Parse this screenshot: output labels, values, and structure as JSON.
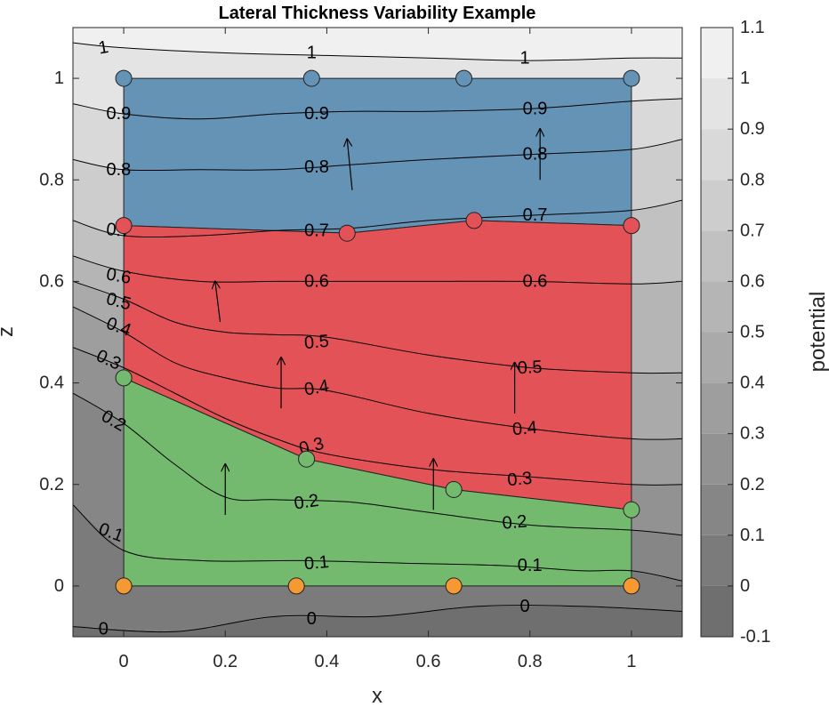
{
  "chart_data": {
    "type": "contour",
    "title": "Lateral Thickness Variability Example",
    "xlabel": "x",
    "ylabel": "z",
    "xlim": [
      -0.1,
      1.1
    ],
    "ylim": [
      -0.1,
      1.1
    ],
    "xticks": [
      "0",
      "0.2",
      "0.4",
      "0.6",
      "0.8",
      "1"
    ],
    "yticks": [
      "0",
      "0.2",
      "0.4",
      "0.6",
      "0.8",
      "1"
    ],
    "colorbar": {
      "label": "potential",
      "range": [
        -0.1,
        1.1
      ],
      "ticks": [
        "-0.1",
        "0",
        "0.1",
        "0.2",
        "0.3",
        "0.4",
        "0.5",
        "0.6",
        "0.7",
        "0.8",
        "0.9",
        "1",
        "1.1"
      ]
    },
    "contour_levels": [
      0,
      0.1,
      0.2,
      0.3,
      0.4,
      0.5,
      0.6,
      0.7,
      0.8,
      0.9,
      1
    ],
    "contours": [
      {
        "level": 0,
        "points": [
          [
            -0.1,
            -0.08
          ],
          [
            0.1,
            -0.09
          ],
          [
            0.3,
            -0.06
          ],
          [
            0.5,
            -0.06
          ],
          [
            0.7,
            -0.04
          ],
          [
            0.9,
            -0.04
          ],
          [
            1.1,
            -0.05
          ]
        ],
        "labels": [
          {
            "text": "0",
            "x": -0.04,
            "y": -0.085,
            "angle": 0
          },
          {
            "text": "0",
            "x": 0.37,
            "y": -0.065,
            "angle": 0
          },
          {
            "text": "0",
            "x": 0.79,
            "y": -0.04,
            "angle": 0
          }
        ]
      },
      {
        "level": 0.1,
        "points": [
          [
            -0.1,
            0.16
          ],
          [
            0.0,
            0.07
          ],
          [
            0.15,
            0.05
          ],
          [
            0.35,
            0.05
          ],
          [
            0.55,
            0.045
          ],
          [
            0.75,
            0.04
          ],
          [
            0.9,
            0.03
          ],
          [
            1.0,
            0.03
          ],
          [
            1.1,
            0.01
          ]
        ],
        "labels": [
          {
            "text": "0.1",
            "x": -0.025,
            "y": 0.105,
            "angle": 20
          },
          {
            "text": "0.1",
            "x": 0.38,
            "y": 0.045,
            "angle": -5
          },
          {
            "text": "0.1",
            "x": 0.8,
            "y": 0.04,
            "angle": 0
          }
        ]
      },
      {
        "level": 0.2,
        "points": [
          [
            -0.1,
            0.38
          ],
          [
            0.0,
            0.32
          ],
          [
            0.1,
            0.24
          ],
          [
            0.2,
            0.175
          ],
          [
            0.3,
            0.17
          ],
          [
            0.45,
            0.165
          ],
          [
            0.6,
            0.145
          ],
          [
            0.8,
            0.12
          ],
          [
            1.0,
            0.11
          ],
          [
            1.1,
            0.1
          ]
        ],
        "labels": [
          {
            "text": "0.2",
            "x": -0.02,
            "y": 0.325,
            "angle": 30
          },
          {
            "text": "0.2",
            "x": 0.36,
            "y": 0.165,
            "angle": -8
          },
          {
            "text": "0.2",
            "x": 0.77,
            "y": 0.125,
            "angle": -5
          }
        ]
      },
      {
        "level": 0.3,
        "points": [
          [
            -0.1,
            0.47
          ],
          [
            0.0,
            0.43
          ],
          [
            0.1,
            0.38
          ],
          [
            0.2,
            0.33
          ],
          [
            0.3,
            0.29
          ],
          [
            0.4,
            0.26
          ],
          [
            0.6,
            0.23
          ],
          [
            0.8,
            0.215
          ],
          [
            1.0,
            0.2
          ],
          [
            1.1,
            0.2
          ]
        ],
        "labels": [
          {
            "text": "0.3",
            "x": -0.03,
            "y": 0.445,
            "angle": 25
          },
          {
            "text": "0.3",
            "x": 0.37,
            "y": 0.275,
            "angle": -15
          },
          {
            "text": "0.3",
            "x": 0.78,
            "y": 0.21,
            "angle": -5
          }
        ]
      },
      {
        "level": 0.4,
        "points": [
          [
            -0.1,
            0.55
          ],
          [
            0.0,
            0.5
          ],
          [
            0.1,
            0.44
          ],
          [
            0.2,
            0.41
          ],
          [
            0.3,
            0.39
          ],
          [
            0.4,
            0.385
          ],
          [
            0.6,
            0.34
          ],
          [
            0.8,
            0.31
          ],
          [
            1.0,
            0.29
          ],
          [
            1.1,
            0.29
          ]
        ],
        "labels": [
          {
            "text": "0.4",
            "x": -0.01,
            "y": 0.51,
            "angle": 20
          },
          {
            "text": "0.4",
            "x": 0.38,
            "y": 0.39,
            "angle": -10
          },
          {
            "text": "0.4",
            "x": 0.79,
            "y": 0.31,
            "angle": -5
          }
        ]
      },
      {
        "level": 0.5,
        "points": [
          [
            -0.1,
            0.6
          ],
          [
            0.0,
            0.565
          ],
          [
            0.1,
            0.52
          ],
          [
            0.2,
            0.5
          ],
          [
            0.3,
            0.495
          ],
          [
            0.4,
            0.49
          ],
          [
            0.6,
            0.455
          ],
          [
            0.8,
            0.43
          ],
          [
            1.0,
            0.42
          ],
          [
            1.1,
            0.42
          ]
        ],
        "labels": [
          {
            "text": "0.5",
            "x": -0.01,
            "y": 0.56,
            "angle": 15
          },
          {
            "text": "0.5",
            "x": 0.38,
            "y": 0.48,
            "angle": -5
          },
          {
            "text": "0.5",
            "x": 0.8,
            "y": 0.43,
            "angle": -3
          }
        ]
      },
      {
        "level": 0.6,
        "points": [
          [
            -0.1,
            0.65
          ],
          [
            0.0,
            0.62
          ],
          [
            0.15,
            0.6
          ],
          [
            0.3,
            0.6
          ],
          [
            0.45,
            0.6
          ],
          [
            0.6,
            0.6
          ],
          [
            0.8,
            0.6
          ],
          [
            1.0,
            0.595
          ],
          [
            1.1,
            0.6
          ]
        ],
        "labels": [
          {
            "text": "0.6",
            "x": -0.01,
            "y": 0.61,
            "angle": 10
          },
          {
            "text": "0.6",
            "x": 0.38,
            "y": 0.6,
            "angle": 0
          },
          {
            "text": "0.6",
            "x": 0.81,
            "y": 0.6,
            "angle": 0
          }
        ]
      },
      {
        "level": 0.7,
        "points": [
          [
            -0.1,
            0.72
          ],
          [
            0.0,
            0.69
          ],
          [
            0.15,
            0.69
          ],
          [
            0.3,
            0.7
          ],
          [
            0.45,
            0.705
          ],
          [
            0.6,
            0.72
          ],
          [
            0.8,
            0.73
          ],
          [
            1.0,
            0.74
          ],
          [
            1.1,
            0.76
          ]
        ],
        "labels": [
          {
            "text": "0.7",
            "x": -0.01,
            "y": 0.7,
            "angle": 5
          },
          {
            "text": "0.7",
            "x": 0.38,
            "y": 0.7,
            "angle": 0
          },
          {
            "text": "0.7",
            "x": 0.81,
            "y": 0.73,
            "angle": 0
          }
        ]
      },
      {
        "level": 0.8,
        "points": [
          [
            -0.1,
            0.84
          ],
          [
            0.0,
            0.82
          ],
          [
            0.15,
            0.82
          ],
          [
            0.3,
            0.82
          ],
          [
            0.45,
            0.83
          ],
          [
            0.6,
            0.84
          ],
          [
            0.8,
            0.85
          ],
          [
            1.0,
            0.86
          ],
          [
            1.1,
            0.88
          ]
        ],
        "labels": [
          {
            "text": "0.8",
            "x": -0.01,
            "y": 0.82,
            "angle": 0
          },
          {
            "text": "0.8",
            "x": 0.38,
            "y": 0.825,
            "angle": 0
          },
          {
            "text": "0.8",
            "x": 0.81,
            "y": 0.85,
            "angle": 0
          }
        ]
      },
      {
        "level": 0.9,
        "points": [
          [
            -0.1,
            0.95
          ],
          [
            0.0,
            0.93
          ],
          [
            0.15,
            0.92
          ],
          [
            0.3,
            0.93
          ],
          [
            0.45,
            0.935
          ],
          [
            0.6,
            0.935
          ],
          [
            0.8,
            0.94
          ],
          [
            1.0,
            0.955
          ],
          [
            1.1,
            0.96
          ]
        ],
        "labels": [
          {
            "text": "0.9",
            "x": -0.01,
            "y": 0.93,
            "angle": 0
          },
          {
            "text": "0.9",
            "x": 0.38,
            "y": 0.93,
            "angle": 0
          },
          {
            "text": "0.9",
            "x": 0.81,
            "y": 0.94,
            "angle": 0
          }
        ]
      },
      {
        "level": 1,
        "points": [
          [
            -0.1,
            1.07
          ],
          [
            0.0,
            1.06
          ],
          [
            0.2,
            1.05
          ],
          [
            0.4,
            1.045
          ],
          [
            0.6,
            1.04
          ],
          [
            0.8,
            1.035
          ],
          [
            1.0,
            1.04
          ],
          [
            1.1,
            1.04
          ]
        ],
        "labels": [
          {
            "text": "1",
            "x": -0.04,
            "y": 1.06,
            "angle": -10
          },
          {
            "text": "1",
            "x": 0.37,
            "y": 1.05,
            "angle": 0
          },
          {
            "text": "1",
            "x": 0.79,
            "y": 1.04,
            "angle": 0
          }
        ]
      }
    ],
    "layers": [
      {
        "color": "#6593b6",
        "polygon": [
          [
            0,
            1
          ],
          [
            1,
            1
          ],
          [
            1,
            0.71
          ],
          [
            0.69,
            0.72
          ],
          [
            0.44,
            0.695
          ],
          [
            0,
            0.71
          ]
        ]
      },
      {
        "color": "#e35257",
        "polygon": [
          [
            0,
            0.71
          ],
          [
            0.44,
            0.695
          ],
          [
            0.69,
            0.72
          ],
          [
            1,
            0.71
          ],
          [
            1,
            0.15
          ],
          [
            0.65,
            0.19
          ],
          [
            0.36,
            0.25
          ],
          [
            0,
            0.41
          ]
        ]
      },
      {
        "color": "#73b96e",
        "polygon": [
          [
            0,
            0.41
          ],
          [
            0.36,
            0.25
          ],
          [
            0.65,
            0.19
          ],
          [
            1,
            0.15
          ],
          [
            1,
            0
          ],
          [
            0,
            0
          ]
        ]
      }
    ],
    "points": [
      {
        "color": "#6593b6",
        "coords": [
          [
            0,
            1
          ],
          [
            0.37,
            1
          ],
          [
            0.67,
            1
          ],
          [
            1,
            1
          ]
        ]
      },
      {
        "color": "#e35257",
        "coords": [
          [
            0,
            0.71
          ],
          [
            0.44,
            0.695
          ],
          [
            0.69,
            0.72
          ],
          [
            1,
            0.71
          ]
        ]
      },
      {
        "color": "#73b96e",
        "coords": [
          [
            0,
            0.41
          ],
          [
            0.36,
            0.25
          ],
          [
            0.65,
            0.19
          ],
          [
            1,
            0.15
          ]
        ]
      },
      {
        "color": "#f59a32",
        "coords": [
          [
            0,
            0
          ],
          [
            0.34,
            0
          ],
          [
            0.65,
            0
          ],
          [
            1,
            0
          ]
        ]
      }
    ],
    "arrows": [
      {
        "from": [
          0.45,
          0.78
        ],
        "to": [
          0.44,
          0.88
        ]
      },
      {
        "from": [
          0.82,
          0.8
        ],
        "to": [
          0.82,
          0.9
        ]
      },
      {
        "from": [
          0.19,
          0.52
        ],
        "to": [
          0.18,
          0.6
        ]
      },
      {
        "from": [
          0.31,
          0.35
        ],
        "to": [
          0.31,
          0.45
        ]
      },
      {
        "from": [
          0.77,
          0.34
        ],
        "to": [
          0.77,
          0.44
        ]
      },
      {
        "from": [
          0.2,
          0.14
        ],
        "to": [
          0.2,
          0.24
        ]
      },
      {
        "from": [
          0.61,
          0.15
        ],
        "to": [
          0.61,
          0.25
        ]
      }
    ]
  }
}
